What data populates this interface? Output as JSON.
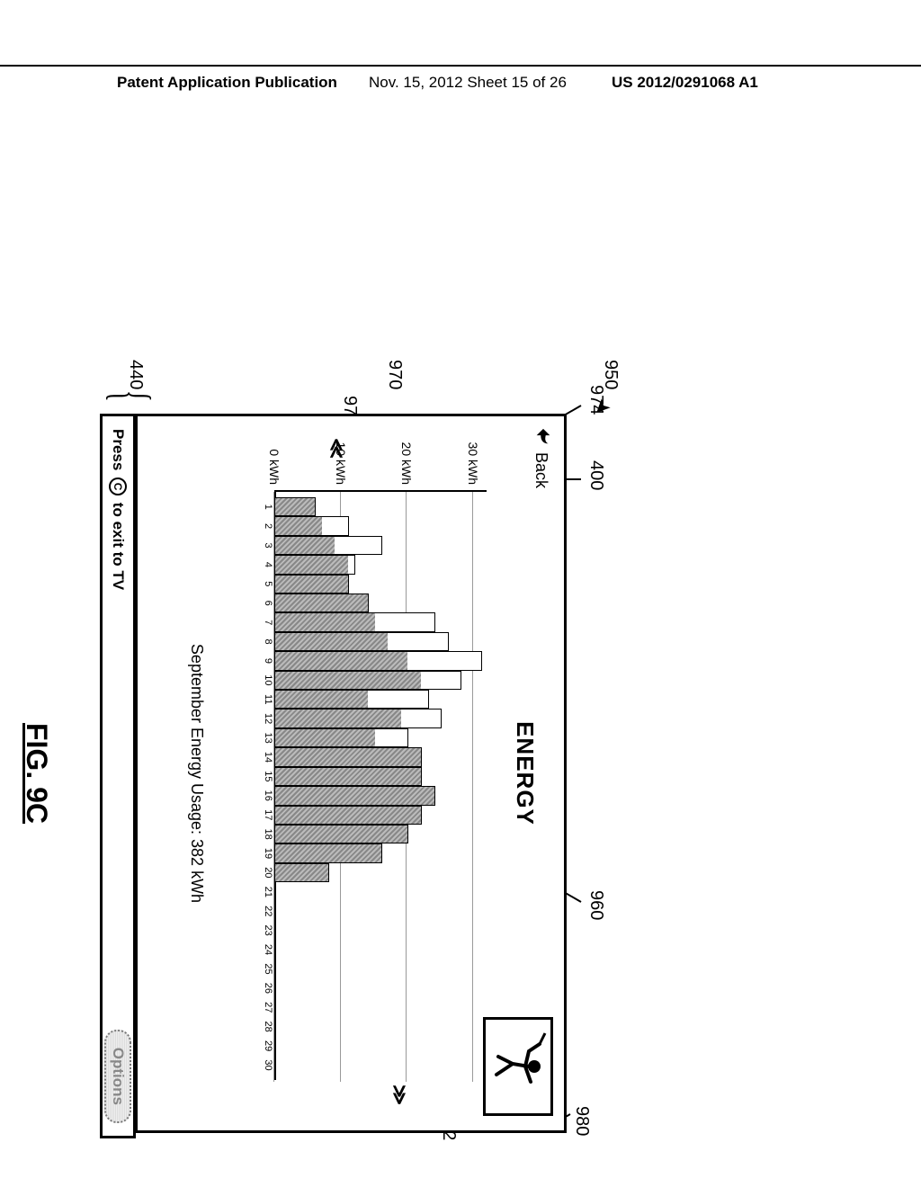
{
  "header": {
    "left": "Patent Application Publication",
    "middle": "Nov. 15, 2012  Sheet 15 of 26",
    "right": "US 2012/0291068 A1"
  },
  "callouts": {
    "c950": "950",
    "c400": "400",
    "c974": "974",
    "c960": "960",
    "c980": "980",
    "c970": "970",
    "c972": "972",
    "c440": "440"
  },
  "screen": {
    "back_label": "Back",
    "title": "ENERGY",
    "summary": "September Energy Usage: 382 kWh",
    "status_left_prefix": "Press",
    "status_left_btn": "C",
    "status_left_suffix": "to exit to TV",
    "options_label": "Options"
  },
  "chart": {
    "type": "bar",
    "ylabel_unit": "kWh",
    "ylim": [
      0,
      32
    ],
    "ytick_step": 10,
    "yticks": [
      0,
      10,
      20,
      30
    ],
    "bar_border_color": "#000000",
    "upper_fill": "#ffffff",
    "lower_fill": "#999999-hatch",
    "grid_color": "#999999",
    "background_color": "#ffffff",
    "axis_fontsize": 14,
    "bars": [
      {
        "x": 1,
        "v": 6,
        "lower": 6
      },
      {
        "x": 2,
        "v": 11,
        "lower": 7
      },
      {
        "x": 3,
        "v": 16,
        "lower": 9
      },
      {
        "x": 4,
        "v": 12,
        "lower": 11
      },
      {
        "x": 5,
        "v": 11,
        "lower": 11
      },
      {
        "x": 6,
        "v": 14,
        "lower": 14
      },
      {
        "x": 7,
        "v": 24,
        "lower": 15
      },
      {
        "x": 8,
        "v": 26,
        "lower": 17
      },
      {
        "x": 9,
        "v": 31,
        "lower": 20
      },
      {
        "x": 10,
        "v": 28,
        "lower": 22
      },
      {
        "x": 11,
        "v": 23,
        "lower": 14
      },
      {
        "x": 12,
        "v": 25,
        "lower": 19
      },
      {
        "x": 13,
        "v": 20,
        "lower": 15
      },
      {
        "x": 14,
        "v": 22,
        "lower": 22
      },
      {
        "x": 15,
        "v": 22,
        "lower": 22
      },
      {
        "x": 16,
        "v": 24,
        "lower": 24
      },
      {
        "x": 17,
        "v": 22,
        "lower": 22
      },
      {
        "x": 18,
        "v": 20,
        "lower": 20
      },
      {
        "x": 19,
        "v": 16,
        "lower": 16
      },
      {
        "x": 20,
        "v": 8,
        "lower": 8
      },
      {
        "x": 21,
        "v": 0,
        "lower": 0
      },
      {
        "x": 22,
        "v": 0,
        "lower": 0
      },
      {
        "x": 23,
        "v": 0,
        "lower": 0
      },
      {
        "x": 24,
        "v": 0,
        "lower": 0
      },
      {
        "x": 25,
        "v": 0,
        "lower": 0
      },
      {
        "x": 26,
        "v": 0,
        "lower": 0
      },
      {
        "x": 27,
        "v": 0,
        "lower": 0
      },
      {
        "x": 28,
        "v": 0,
        "lower": 0
      },
      {
        "x": 29,
        "v": 0,
        "lower": 0
      },
      {
        "x": 30,
        "v": 0,
        "lower": 0
      }
    ]
  },
  "figure_caption": "FIG. 9C"
}
